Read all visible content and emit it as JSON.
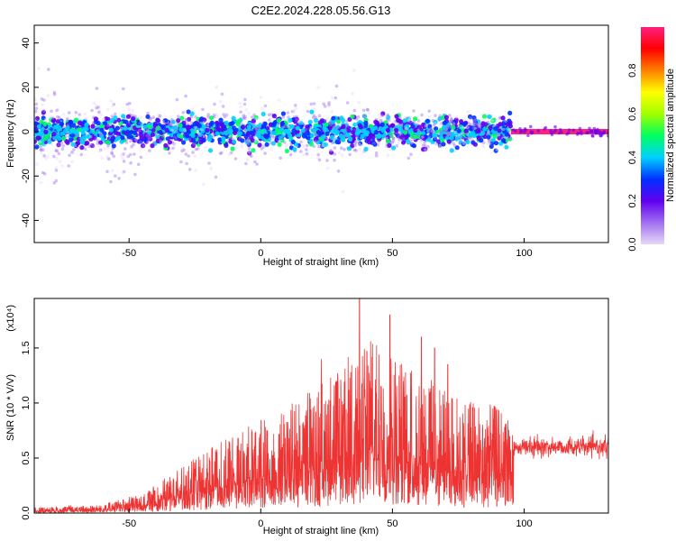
{
  "title": "C2E2.2024.228.05.56.G13",
  "chart_data": [
    {
      "type": "scatter",
      "xlabel": "Height of straight line (km)",
      "ylabel": "Frequency (Hz)",
      "xlim": [
        -86,
        132
      ],
      "ylim": [
        -50,
        48
      ],
      "xticks": [
        -50,
        0,
        50,
        100
      ],
      "yticks": [
        -40,
        -20,
        0,
        20,
        40
      ],
      "colorbar": {
        "label": "Normalized spectral amplitude",
        "range": [
          0,
          1
        ],
        "ticks": [
          "0.0",
          "0.2",
          "0.4",
          "0.6",
          "0.8"
        ],
        "colors": [
          "#e8d8f8",
          "#a070f0",
          "#6000f0",
          "#0030ff",
          "#00d0ff",
          "#00ff60",
          "#a0ff00",
          "#ffff00",
          "#ff8000",
          "#ff0000",
          "#ff2080"
        ]
      },
      "envelope": [
        {
          "x": -86,
          "spread": 22
        },
        {
          "x": -75,
          "spread": 14
        },
        {
          "x": -62,
          "spread": 10
        },
        {
          "x": -55,
          "spread": 22
        },
        {
          "x": -40,
          "spread": 6
        },
        {
          "x": -22,
          "spread": 14
        },
        {
          "x": -5,
          "spread": 12
        },
        {
          "x": 10,
          "spread": 10
        },
        {
          "x": 28,
          "spread": 16
        },
        {
          "x": 50,
          "spread": 8
        },
        {
          "x": 80,
          "spread": 6
        },
        {
          "x": 95,
          "spread": 5
        }
      ],
      "steady_segment": {
        "x_start": 95,
        "x_end": 132,
        "frequency": 0,
        "amplitude": 0.95
      }
    },
    {
      "type": "line",
      "xlabel": "Height of straight line (km)",
      "ylabel": "SNR (10 * V/V)",
      "yscale_label": "(x10⁴)",
      "xlim": [
        -86,
        132
      ],
      "ylim": [
        0,
        1.95
      ],
      "xticks": [
        -50,
        0,
        50,
        100
      ],
      "yticks": [
        "0.0",
        "0.5",
        "1.0",
        "1.5"
      ],
      "color": "#ee3333",
      "envelope": [
        {
          "x": -86,
          "y": 0.05
        },
        {
          "x": -60,
          "y": 0.08
        },
        {
          "x": -45,
          "y": 0.18
        },
        {
          "x": -25,
          "y": 0.5
        },
        {
          "x": -15,
          "y": 0.65
        },
        {
          "x": 0,
          "y": 0.85
        },
        {
          "x": 15,
          "y": 1.05
        },
        {
          "x": 30,
          "y": 1.35
        },
        {
          "x": 40,
          "y": 1.6
        },
        {
          "x": 50,
          "y": 1.45
        },
        {
          "x": 60,
          "y": 1.3
        },
        {
          "x": 75,
          "y": 1.05
        },
        {
          "x": 94,
          "y": 0.95
        },
        {
          "x": 96,
          "y": 0.65
        },
        {
          "x": 132,
          "y": 0.65
        }
      ],
      "peaks": [
        {
          "x": 37.5,
          "y": 1.95
        },
        {
          "x": 49,
          "y": 1.8
        },
        {
          "x": 61,
          "y": 1.6
        },
        {
          "x": 23,
          "y": 1.4
        },
        {
          "x": 66,
          "y": 1.5
        },
        {
          "x": 71,
          "y": 1.35
        }
      ],
      "plateau": {
        "x_start": 96,
        "x_end": 132,
        "y": 0.6
      }
    }
  ]
}
